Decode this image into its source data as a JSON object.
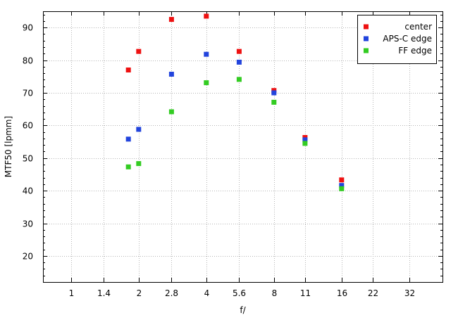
{
  "chart_data": {
    "type": "scatter",
    "xlabel": "f/",
    "ylabel": "MTF50 [lpmm]",
    "x_scale": "log2",
    "x_ticks": [
      1,
      1.4,
      2,
      2.8,
      4,
      5.6,
      8,
      11,
      16,
      22,
      32
    ],
    "x_tick_labels": [
      "1",
      "1.4",
      "2",
      "2.8",
      "4",
      "5.6",
      "8",
      "11",
      "16",
      "22",
      "32"
    ],
    "xlim": [
      0.75,
      45
    ],
    "y_ticks": [
      20,
      30,
      40,
      50,
      60,
      70,
      80,
      90
    ],
    "y_tick_labels": [
      "20",
      "30",
      "40",
      "50",
      "60",
      "70",
      "80",
      "90"
    ],
    "ylim": [
      12,
      95
    ],
    "grid": true,
    "legend_position": "top-right",
    "series": [
      {
        "name": "center",
        "color": "#ee1111",
        "points": [
          [
            1.8,
            77
          ],
          [
            2,
            82.7
          ],
          [
            2.8,
            92.5
          ],
          [
            4,
            93.5
          ],
          [
            5.6,
            82.7
          ],
          [
            8,
            70.7
          ],
          [
            11,
            56.3
          ],
          [
            16,
            43.3
          ]
        ]
      },
      {
        "name": "APS-C edge",
        "color": "#2244dd",
        "points": [
          [
            1.8,
            55.8
          ],
          [
            2,
            58.8
          ],
          [
            2.8,
            75.7
          ],
          [
            4,
            81.8
          ],
          [
            5.6,
            79.4
          ],
          [
            8,
            70
          ],
          [
            11,
            55.6
          ],
          [
            16,
            41.6
          ]
        ]
      },
      {
        "name": "FF edge",
        "color": "#33cc22",
        "points": [
          [
            1.8,
            47.3
          ],
          [
            2,
            48.3
          ],
          [
            2.8,
            64.2
          ],
          [
            4,
            73.1
          ],
          [
            5.6,
            74.1
          ],
          [
            8,
            67.1
          ],
          [
            11,
            54.5
          ],
          [
            16,
            40.6
          ]
        ]
      }
    ]
  }
}
